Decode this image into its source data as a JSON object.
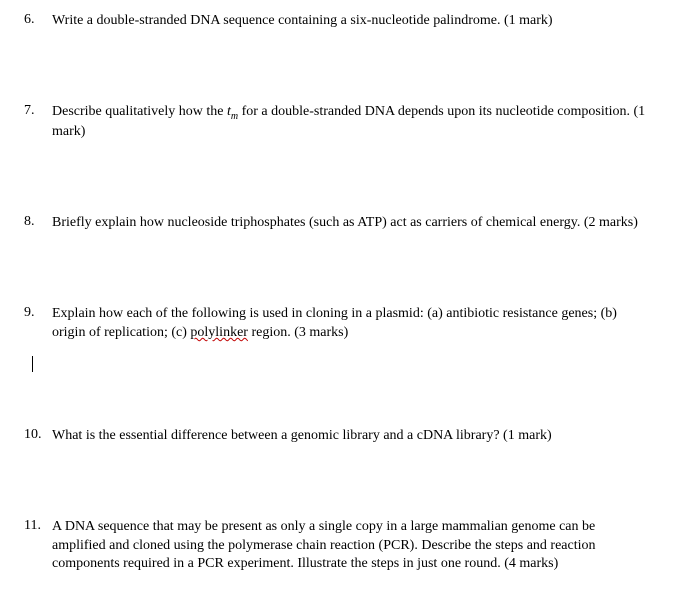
{
  "questions": [
    {
      "num": "6.",
      "text": "Write a double-stranded DNA sequence containing a six-nucleotide palindrome. (1 mark)"
    },
    {
      "num": "7.",
      "pre": "Describe qualitatively how the ",
      "tm_t": "t",
      "tm_m": "m",
      "post": " for a double-stranded DNA depends upon its nucleotide composition. (1 mark)"
    },
    {
      "num": "8.",
      "text": "Briefly explain how nucleoside triphosphates (such as ATP) act as carriers of chemical energy. (2 marks)"
    },
    {
      "num": "9.",
      "pre": "Explain how each of the following is used in cloning in a plasmid:  (a) antibiotic resistance genes; (b) origin of replication; (c) ",
      "squiggle": "polylinker",
      "post": " region. (3 marks)"
    },
    {
      "num": "10.",
      "text": "What is the essential difference between a genomic library and a cDNA library? (1 mark)"
    },
    {
      "num": "11.",
      "text": "A DNA sequence that may be present as only a single copy in a large mammalian genome can be amplified and cloned using the polymerase chain reaction (PCR).  Describe the steps and reaction components required in a PCR experiment.  Illustrate the steps in just one round. (4 marks)"
    }
  ]
}
